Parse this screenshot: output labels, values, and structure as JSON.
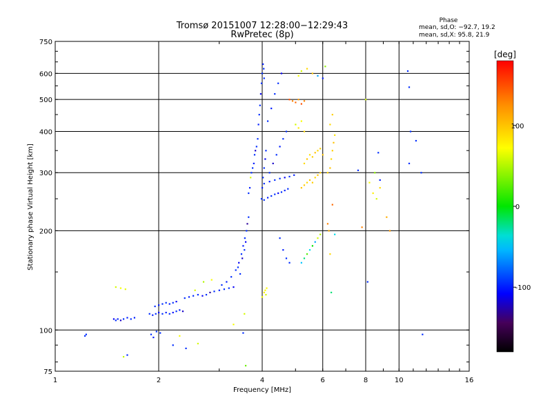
{
  "chart_data": {
    "type": "scatter",
    "title": "Tromsø 20151007 12:28:00−12:29:43",
    "subtitle": "RwPretec (8p)",
    "xlabel": "Frequency [MHz]",
    "ylabel": "Stationary phase Virtual Height [km]",
    "x_scale": "log",
    "y_scale": "log",
    "xlim": [
      1,
      16
    ],
    "ylim": [
      75,
      750
    ],
    "x_ticks": [
      1,
      2,
      4,
      6,
      8,
      10,
      16
    ],
    "y_ticks": [
      75,
      100,
      200,
      300,
      400,
      500,
      600,
      750
    ],
    "x_gridlines": [
      2,
      4,
      6,
      8,
      10
    ],
    "y_gridlines": [
      100,
      200,
      300,
      400,
      500,
      600
    ],
    "grid": true,
    "phase_stats": {
      "heading": "Phase",
      "line_o": "mean, sd,O: −92.7, 19.2",
      "line_x": "mean, sd,X:  95.8, 21.9"
    },
    "colorbar": {
      "label": "[deg]",
      "range": [
        -180,
        180
      ],
      "ticks": [
        -100,
        0,
        100
      ]
    },
    "series": [
      {
        "points": [
          [
            1.22,
            96,
            -95
          ],
          [
            1.23,
            97,
            -95
          ],
          [
            1.48,
            108,
            -110
          ],
          [
            1.5,
            107,
            -95
          ],
          [
            1.52,
            108,
            -100
          ],
          [
            1.55,
            107,
            -120
          ],
          [
            1.58,
            108,
            -95
          ],
          [
            1.62,
            109,
            -100
          ],
          [
            1.66,
            108,
            -95
          ],
          [
            1.7,
            109,
            -100
          ],
          [
            1.5,
            135,
            60
          ],
          [
            1.55,
            134,
            70
          ],
          [
            1.6,
            133,
            65
          ],
          [
            1.58,
            83,
            55
          ],
          [
            1.62,
            84,
            -95
          ],
          [
            1.88,
            112,
            -95
          ],
          [
            1.92,
            111,
            -100
          ],
          [
            1.96,
            112,
            -95
          ],
          [
            2.0,
            113,
            -110
          ],
          [
            2.05,
            112,
            -95
          ],
          [
            2.1,
            113,
            -100
          ],
          [
            2.15,
            112,
            -95
          ],
          [
            2.2,
            113,
            -105
          ],
          [
            2.25,
            114,
            -95
          ],
          [
            2.3,
            115,
            -100
          ],
          [
            2.35,
            114,
            -120
          ],
          [
            1.95,
            118,
            -95
          ],
          [
            2.0,
            119,
            -100
          ],
          [
            2.05,
            120,
            -95
          ],
          [
            2.1,
            121,
            -95
          ],
          [
            2.15,
            120,
            -100
          ],
          [
            2.2,
            121,
            -95
          ],
          [
            2.25,
            122,
            -110
          ],
          [
            1.9,
            97,
            -95
          ],
          [
            1.93,
            95,
            -100
          ],
          [
            1.97,
            99,
            -95
          ],
          [
            2.02,
            98,
            -95
          ],
          [
            2.38,
            125,
            -95
          ],
          [
            2.45,
            126,
            -100
          ],
          [
            2.52,
            127,
            -95
          ],
          [
            2.6,
            128,
            -95
          ],
          [
            2.68,
            127,
            -110
          ],
          [
            2.75,
            128,
            -95
          ],
          [
            2.82,
            130,
            -130
          ],
          [
            2.9,
            131,
            -95
          ],
          [
            3.0,
            132,
            -100
          ],
          [
            3.1,
            133,
            -95
          ],
          [
            3.2,
            134,
            -95
          ],
          [
            3.3,
            135,
            -110
          ],
          [
            2.55,
            132,
            60
          ],
          [
            2.7,
            140,
            50
          ],
          [
            2.85,
            142,
            70
          ],
          [
            2.6,
            91,
            60
          ],
          [
            2.4,
            88,
            -95
          ],
          [
            2.3,
            96,
            70
          ],
          [
            2.2,
            90,
            -95
          ],
          [
            3.05,
            137,
            -95
          ],
          [
            3.15,
            140,
            -100
          ],
          [
            3.25,
            145,
            -95
          ],
          [
            3.35,
            152,
            -95
          ],
          [
            3.42,
            160,
            -110
          ],
          [
            3.48,
            170,
            -95
          ],
          [
            3.52,
            180,
            -100
          ],
          [
            3.56,
            190,
            -95
          ],
          [
            3.6,
            200,
            -95
          ],
          [
            3.62,
            210,
            -130
          ],
          [
            3.65,
            220,
            -95
          ],
          [
            3.45,
            148,
            -95
          ],
          [
            3.4,
            155,
            -95
          ],
          [
            3.5,
            165,
            -120
          ],
          [
            3.55,
            175,
            -95
          ],
          [
            3.58,
            185,
            -110
          ],
          [
            3.65,
            260,
            -95
          ],
          [
            3.68,
            270,
            -100
          ],
          [
            3.7,
            290,
            60
          ],
          [
            3.72,
            300,
            -95
          ],
          [
            3.75,
            310,
            -95
          ],
          [
            3.78,
            320,
            -100
          ],
          [
            3.8,
            340,
            -95
          ],
          [
            3.82,
            350,
            -120
          ],
          [
            3.85,
            360,
            -95
          ],
          [
            3.3,
            104,
            70
          ],
          [
            3.55,
            112,
            60
          ],
          [
            3.58,
            78,
            30
          ],
          [
            3.52,
            98,
            -95
          ],
          [
            3.88,
            380,
            -95
          ],
          [
            3.9,
            420,
            -100
          ],
          [
            3.92,
            450,
            -95
          ],
          [
            3.94,
            480,
            -95
          ],
          [
            3.96,
            520,
            -110
          ],
          [
            3.98,
            560,
            -95
          ],
          [
            4.0,
            600,
            -95
          ],
          [
            4.02,
            640,
            -100
          ],
          [
            4.04,
            620,
            -95
          ],
          [
            4.05,
            580,
            -95
          ],
          [
            3.98,
            250,
            -95
          ],
          [
            4.0,
            270,
            -100
          ],
          [
            4.02,
            290,
            -95
          ],
          [
            4.05,
            310,
            -95
          ],
          [
            4.08,
            330,
            -110
          ],
          [
            4.1,
            350,
            -95
          ],
          [
            4.05,
            248,
            -95
          ],
          [
            4.15,
            252,
            -100
          ],
          [
            4.25,
            255,
            -95
          ],
          [
            4.35,
            258,
            -95
          ],
          [
            4.45,
            260,
            -110
          ],
          [
            4.55,
            262,
            -95
          ],
          [
            4.65,
            265,
            -100
          ],
          [
            4.75,
            268,
            -95
          ],
          [
            4.05,
            278,
            -95
          ],
          [
            4.2,
            282,
            -100
          ],
          [
            4.35,
            285,
            -95
          ],
          [
            4.5,
            288,
            -95
          ],
          [
            4.65,
            290,
            -110
          ],
          [
            4.8,
            292,
            -95
          ],
          [
            4.95,
            295,
            -100
          ],
          [
            4.05,
            130,
            80
          ],
          [
            4.08,
            132,
            70
          ],
          [
            4.1,
            128,
            60
          ],
          [
            4.12,
            134,
            75
          ],
          [
            4.0,
            126,
            70
          ],
          [
            4.2,
            300,
            -95
          ],
          [
            4.3,
            320,
            -120
          ],
          [
            4.4,
            340,
            -95
          ],
          [
            4.5,
            360,
            -100
          ],
          [
            4.6,
            380,
            -95
          ],
          [
            4.7,
            400,
            -95
          ],
          [
            4.15,
            430,
            -95
          ],
          [
            4.25,
            470,
            -100
          ],
          [
            4.35,
            520,
            -95
          ],
          [
            4.45,
            560,
            -95
          ],
          [
            4.55,
            600,
            -110
          ],
          [
            4.5,
            190,
            -95
          ],
          [
            4.6,
            175,
            -100
          ],
          [
            4.7,
            165,
            -95
          ],
          [
            4.8,
            160,
            -95
          ],
          [
            4.8,
            500,
            150
          ],
          [
            4.9,
            495,
            130
          ],
          [
            5.0,
            490,
            140
          ],
          [
            5.1,
            500,
            120
          ],
          [
            5.2,
            485,
            150
          ],
          [
            5.3,
            495,
            130
          ],
          [
            5.0,
            420,
            60
          ],
          [
            5.1,
            410,
            80
          ],
          [
            5.2,
            430,
            70
          ],
          [
            5.3,
            400,
            90
          ],
          [
            5.2,
            270,
            100
          ],
          [
            5.3,
            275,
            95
          ],
          [
            5.4,
            280,
            90
          ],
          [
            5.5,
            285,
            100
          ],
          [
            5.6,
            280,
            95
          ],
          [
            5.7,
            290,
            90
          ],
          [
            5.8,
            295,
            100
          ],
          [
            5.9,
            300,
            95
          ],
          [
            5.3,
            320,
            90
          ],
          [
            5.4,
            330,
            100
          ],
          [
            5.5,
            340,
            85
          ],
          [
            5.6,
            335,
            95
          ],
          [
            5.7,
            345,
            100
          ],
          [
            5.8,
            350,
            90
          ],
          [
            5.9,
            355,
            95
          ],
          [
            6.0,
            340,
            100
          ],
          [
            6.2,
            300,
            95
          ],
          [
            6.3,
            310,
            100
          ],
          [
            6.35,
            330,
            90
          ],
          [
            6.4,
            350,
            95
          ],
          [
            6.45,
            370,
            100
          ],
          [
            6.5,
            390,
            85
          ],
          [
            6.3,
            420,
            90
          ],
          [
            6.4,
            450,
            95
          ],
          [
            5.8,
            190,
            60
          ],
          [
            5.9,
            195,
            50
          ],
          [
            5.7,
            185,
            -60
          ],
          [
            5.6,
            180,
            0
          ],
          [
            5.5,
            175,
            -40
          ],
          [
            5.4,
            170,
            20
          ],
          [
            5.3,
            165,
            -20
          ],
          [
            5.2,
            160,
            -50
          ],
          [
            6.2,
            210,
            130
          ],
          [
            6.25,
            200,
            110
          ],
          [
            6.4,
            240,
            140
          ],
          [
            6.5,
            195,
            -40
          ],
          [
            6.3,
            170,
            90
          ],
          [
            6.35,
            130,
            -20
          ],
          [
            5.1,
            590,
            70
          ],
          [
            5.2,
            610,
            60
          ],
          [
            5.4,
            620,
            90
          ],
          [
            5.6,
            600,
            100
          ],
          [
            5.8,
            590,
            -60
          ],
          [
            6.0,
            580,
            -100
          ],
          [
            6.1,
            630,
            40
          ],
          [
            8.0,
            500,
            60
          ],
          [
            8.2,
            280,
            70
          ],
          [
            8.4,
            260,
            80
          ],
          [
            8.6,
            250,
            60
          ],
          [
            8.8,
            270,
            90
          ],
          [
            8.5,
            300,
            40
          ],
          [
            7.6,
            305,
            -95
          ],
          [
            8.7,
            345,
            -95
          ],
          [
            8.8,
            285,
            -100
          ],
          [
            9.2,
            220,
            110
          ],
          [
            9.4,
            200,
            120
          ],
          [
            7.8,
            205,
            130
          ],
          [
            8.1,
            140,
            -95
          ],
          [
            10.6,
            610,
            -95
          ],
          [
            10.7,
            545,
            -95
          ],
          [
            10.8,
            400,
            -95
          ],
          [
            10.7,
            320,
            -95
          ],
          [
            11.2,
            375,
            -95
          ],
          [
            11.6,
            300,
            -95
          ],
          [
            11.7,
            97,
            -95
          ]
        ]
      }
    ]
  }
}
